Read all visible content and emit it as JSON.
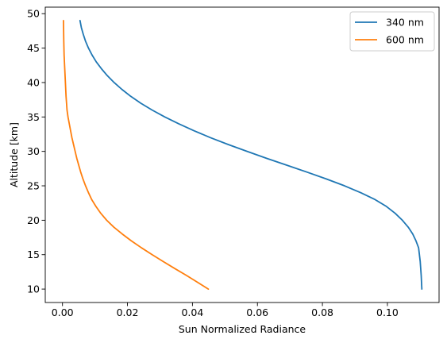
{
  "chart_data": {
    "type": "line",
    "title": "",
    "xlabel": "Sun Normalized Radiance",
    "ylabel": "Altitude [km]",
    "xlim": [
      -0.0053,
      0.1159
    ],
    "ylim": [
      8.05,
      50.95
    ],
    "xticks": [
      0.0,
      0.02,
      0.04,
      0.06,
      0.08,
      0.1
    ],
    "xtick_labels": [
      "0.00",
      "0.02",
      "0.04",
      "0.06",
      "0.08",
      "0.10"
    ],
    "yticks": [
      10,
      15,
      20,
      25,
      30,
      35,
      40,
      45,
      50
    ],
    "ytick_labels": [
      "10",
      "15",
      "20",
      "25",
      "30",
      "35",
      "40",
      "45",
      "50"
    ],
    "grid": false,
    "legend_position": "top-right",
    "series": [
      {
        "name": "340 nm",
        "color": "#1f77b4",
        "x": [
          0.1106,
          0.1104,
          0.1101,
          0.1096,
          0.1088,
          0.1078,
          0.1064,
          0.1046,
          0.1024,
          0.0997,
          0.0962,
          0.0918,
          0.0868,
          0.0812,
          0.0752,
          0.069,
          0.0628,
          0.0568,
          0.051,
          0.0455,
          0.0405,
          0.0358,
          0.0315,
          0.0276,
          0.0241,
          0.021,
          0.0183,
          0.0159,
          0.0138,
          0.012,
          0.0104,
          0.0091,
          0.008,
          0.0071,
          0.0064,
          0.0058,
          0.0054
        ],
        "y": [
          10,
          12,
          14,
          16,
          17,
          18,
          19,
          20,
          21,
          22,
          23,
          24,
          25,
          26,
          27,
          28,
          29,
          30,
          31,
          32,
          33,
          34,
          35,
          36,
          37,
          38,
          39,
          40,
          41,
          42,
          43,
          44,
          45,
          46,
          47,
          48,
          49
        ]
      },
      {
        "name": "600 nm",
        "color": "#ff7f0e",
        "x": [
          0.0449,
          0.0415,
          0.0381,
          0.0345,
          0.031,
          0.0276,
          0.0243,
          0.0212,
          0.0184,
          0.0158,
          0.0136,
          0.0118,
          0.0103,
          0.009,
          0.008,
          0.0071,
          0.0063,
          0.0056,
          0.005,
          0.0044,
          0.0039,
          0.0034,
          0.0029,
          0.0025,
          0.0021,
          0.0017,
          0.0014,
          0.0011,
          0.0009,
          0.0007,
          0.0005,
          0.0004,
          0.0003
        ],
        "y": [
          10,
          11,
          12,
          13,
          14,
          15,
          16,
          17,
          18,
          19,
          20,
          21,
          22,
          23,
          24,
          25,
          26,
          27,
          28,
          29,
          30,
          31,
          32,
          33,
          34,
          35,
          36,
          38,
          40,
          42,
          44,
          46,
          49
        ]
      }
    ]
  }
}
